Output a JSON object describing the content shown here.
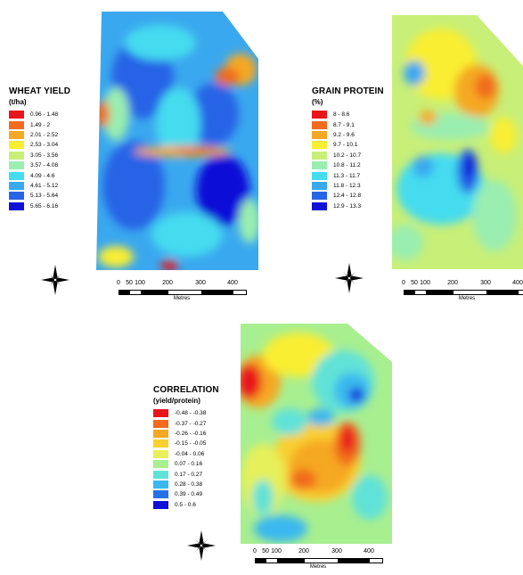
{
  "maps": {
    "yield": {
      "title": "WHEAT YIELD",
      "unit": "(t/ha)",
      "classes": [
        {
          "label": "0.96 - 1.48",
          "color": "#e8161a"
        },
        {
          "label": "1.49 - 2",
          "color": "#f26a1c"
        },
        {
          "label": "2.01 - 2.52",
          "color": "#f5a823"
        },
        {
          "label": "2.53 - 3.04",
          "color": "#f9ee30"
        },
        {
          "label": "3.05 - 3.56",
          "color": "#c8ef78"
        },
        {
          "label": "3.57 - 4.08",
          "color": "#9aeeb0"
        },
        {
          "label": "4.09 - 4.6",
          "color": "#45dcef"
        },
        {
          "label": "4.61 - 5.12",
          "color": "#3aa8ef"
        },
        {
          "label": "5.13 - 5.64",
          "color": "#2864e6"
        },
        {
          "label": "5.65 - 6.16",
          "color": "#1010d8"
        }
      ]
    },
    "protein": {
      "title": "GRAIN PROTEIN",
      "unit": "(%)",
      "classes": [
        {
          "label": "8 - 8.6",
          "color": "#e8161a"
        },
        {
          "label": "8.7 - 9.1",
          "color": "#f26a1c"
        },
        {
          "label": "9.2 - 9.6",
          "color": "#f5a823"
        },
        {
          "label": "9.7 - 10.1",
          "color": "#f9ee30"
        },
        {
          "label": "10.2 - 10.7",
          "color": "#c8ef78"
        },
        {
          "label": "10.8 - 11.2",
          "color": "#9aeeb0"
        },
        {
          "label": "11.3 - 11.7",
          "color": "#45dcef"
        },
        {
          "label": "11.8 - 12.3",
          "color": "#3aa8ef"
        },
        {
          "label": "12.4 - 12.8",
          "color": "#2864e6"
        },
        {
          "label": "12.9 - 13.3",
          "color": "#1010d8"
        }
      ]
    },
    "correlation": {
      "title": "CORRELATION",
      "unit": "(yield/protein)",
      "classes": [
        {
          "label": "-0.48 - -0.38",
          "color": "#e8161a"
        },
        {
          "label": "-0.37 - -0.27",
          "color": "#f26a1c"
        },
        {
          "label": "-0.26 - -0.16",
          "color": "#f5a823"
        },
        {
          "label": "-0.15 - -0.05",
          "color": "#f9d030"
        },
        {
          "label": "-0.04 - 0.06",
          "color": "#e6f05a"
        },
        {
          "label": "0.07 - 0.16",
          "color": "#a8ef90"
        },
        {
          "label": "0.17 - 0.27",
          "color": "#60e2d8"
        },
        {
          "label": "0.28 - 0.38",
          "color": "#3ab8ef"
        },
        {
          "label": "0.39 - 0.49",
          "color": "#2870e6"
        },
        {
          "label": "0.5 - 0.6",
          "color": "#1010d8"
        }
      ]
    }
  },
  "scale_bar": {
    "ticks": [
      "0",
      "50",
      "100",
      "200",
      "300",
      "400"
    ],
    "unit": "Metres"
  },
  "north_arrow": {
    "icon": "compass-rose-icon"
  }
}
